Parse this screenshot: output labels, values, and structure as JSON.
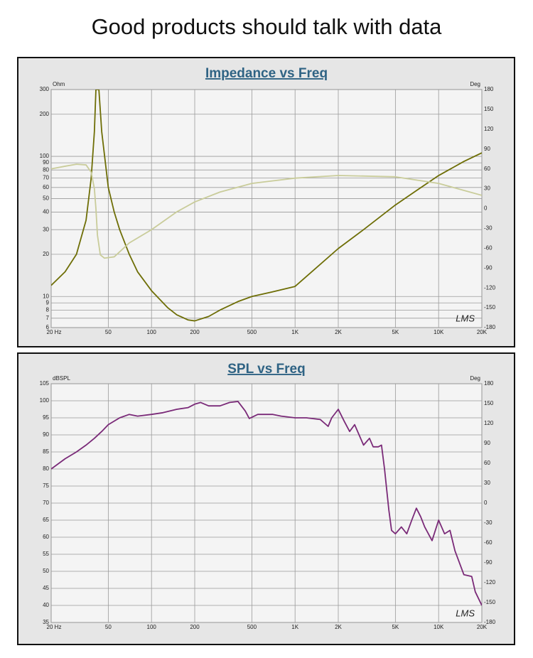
{
  "header": {
    "title": "Good products should talk with data"
  },
  "chart_data": [
    {
      "type": "line",
      "title": "Impedance vs Freq",
      "y_label": "Ohm",
      "y2_label": "Deg",
      "logo": "LMS",
      "xscale": "log",
      "yscale": "log",
      "grid": true,
      "xlim": [
        20,
        20000
      ],
      "ylim": [
        6,
        300
      ],
      "y2lim": [
        -180,
        180
      ],
      "xticks": [
        {
          "value": 20,
          "label": "20 Hz"
        },
        50,
        100,
        200,
        500,
        {
          "value": 1000,
          "label": "1K"
        },
        {
          "value": 2000,
          "label": "2K"
        },
        {
          "value": 5000,
          "label": "5K"
        },
        {
          "value": 10000,
          "label": "10K"
        },
        {
          "value": 20000,
          "label": "20K"
        }
      ],
      "yticks": [
        6,
        7,
        8,
        9,
        10,
        20,
        30,
        40,
        50,
        60,
        70,
        80,
        90,
        100,
        200,
        300
      ],
      "y2ticks": [
        180,
        150,
        120,
        90,
        60,
        30,
        0,
        -30,
        -60,
        -90,
        -120,
        -150,
        -180
      ],
      "series": [
        {
          "color": "#6e6e06",
          "x": [
            20,
            25,
            30,
            35,
            38,
            40,
            41,
            43,
            45,
            50,
            55,
            60,
            70,
            80,
            100,
            130,
            150,
            180,
            200,
            250,
            300,
            400,
            500,
            700,
            1000,
            2000,
            3000,
            5000,
            7000,
            10000,
            15000,
            20000
          ],
          "values": [
            12,
            15,
            20,
            35,
            70,
            150,
            300,
            300,
            150,
            60,
            40,
            30,
            20,
            15,
            11,
            8.3,
            7.4,
            6.8,
            6.7,
            7.2,
            8,
            9.2,
            10,
            10.8,
            11.8,
            22,
            30,
            45,
            57,
            73,
            92,
            106
          ]
        },
        {
          "color": "#c9cc9a",
          "axis": "y2",
          "x": [
            20,
            25,
            30,
            35,
            38,
            40,
            41,
            42,
            44,
            47,
            55,
            70,
            100,
            150,
            200,
            300,
            500,
            1000,
            2000,
            5000,
            10000,
            20000
          ],
          "values": [
            60,
            64,
            67,
            66,
            55,
            30,
            0,
            -40,
            -70,
            -75,
            -73,
            -52,
            -32,
            -5,
            10,
            25,
            38,
            46,
            50,
            48,
            38,
            20
          ]
        }
      ]
    },
    {
      "type": "line",
      "title": "SPL vs Freq",
      "y_label": "dBSPL",
      "y2_label": "Deg",
      "logo": "LMS",
      "xscale": "log",
      "grid": true,
      "xlim": [
        20,
        20000
      ],
      "ylim": [
        35,
        105
      ],
      "y2lim": [
        -180,
        180
      ],
      "xticks": [
        {
          "value": 20,
          "label": "20 Hz"
        },
        50,
        100,
        200,
        500,
        {
          "value": 1000,
          "label": "1K"
        },
        {
          "value": 2000,
          "label": "2K"
        },
        {
          "value": 5000,
          "label": "5K"
        },
        {
          "value": 10000,
          "label": "10K"
        },
        {
          "value": 20000,
          "label": "20K"
        }
      ],
      "yticks": [
        35,
        40,
        45,
        50,
        55,
        60,
        65,
        70,
        75,
        80,
        85,
        90,
        95,
        100,
        105
      ],
      "y2ticks": [
        180,
        150,
        120,
        90,
        60,
        30,
        0,
        -30,
        -60,
        -90,
        -120,
        -150,
        -180
      ],
      "series": [
        {
          "color": "#7a2a78",
          "x": [
            20,
            25,
            30,
            35,
            40,
            45,
            50,
            60,
            70,
            80,
            100,
            120,
            150,
            180,
            200,
            220,
            250,
            300,
            350,
            400,
            450,
            480,
            550,
            700,
            800,
            1000,
            1200,
            1500,
            1700,
            1800,
            2000,
            2200,
            2400,
            2600,
            3000,
            3300,
            3500,
            3800,
            4000,
            4200,
            4500,
            4700,
            5000,
            5500,
            6000,
            6500,
            7000,
            7500,
            8000,
            9000,
            10000,
            11000,
            12000,
            13000,
            15000,
            17000,
            18000,
            20000
          ],
          "values": [
            80,
            83,
            85,
            87,
            89,
            91,
            93,
            95,
            96,
            95.5,
            96,
            96.5,
            97.5,
            98,
            99,
            99.5,
            98.5,
            98.5,
            99.5,
            99.8,
            97,
            94.8,
            96,
            96,
            95.5,
            95,
            95,
            94.5,
            92.5,
            95,
            97.5,
            94,
            91,
            93,
            87,
            89,
            86.5,
            86.5,
            87,
            80,
            68,
            62,
            61,
            63,
            61,
            65,
            68.5,
            66,
            63,
            59,
            65,
            61,
            62,
            56,
            49,
            48.5,
            44,
            40
          ]
        }
      ]
    }
  ]
}
